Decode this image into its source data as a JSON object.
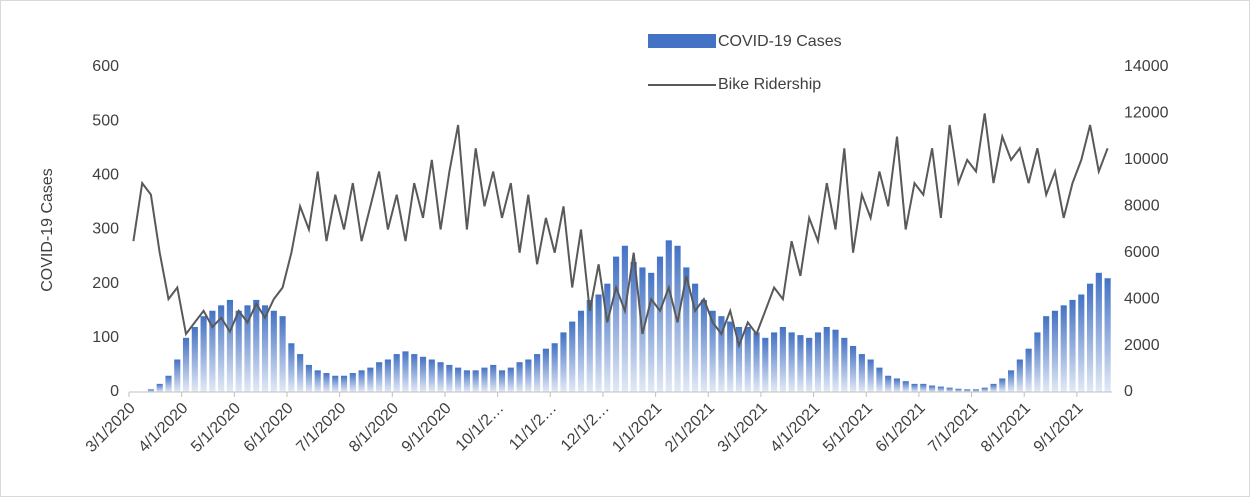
{
  "chart_data": {
    "type": "bar-line",
    "y_label": "COVID-19 Cases",
    "categories": [
      "3/1/2020",
      null,
      null,
      null,
      null,
      null,
      "4/1/2020",
      null,
      null,
      null,
      null,
      null,
      "5/1/2020",
      null,
      null,
      null,
      null,
      null,
      "6/1/2020",
      null,
      null,
      null,
      null,
      null,
      "7/1/2020",
      null,
      null,
      null,
      null,
      null,
      "8/1/2020",
      null,
      null,
      null,
      null,
      null,
      "9/1/2020",
      null,
      null,
      null,
      null,
      null,
      "10/1/2…",
      null,
      null,
      null,
      null,
      null,
      "11/1/2…",
      null,
      null,
      null,
      null,
      null,
      "12/1/2…",
      null,
      null,
      null,
      null,
      null,
      "1/1/2021",
      null,
      null,
      null,
      null,
      null,
      "2/1/2021",
      null,
      null,
      null,
      null,
      null,
      "3/1/2021",
      null,
      null,
      null,
      null,
      null,
      "4/1/2021",
      null,
      null,
      null,
      null,
      null,
      "5/1/2021",
      null,
      null,
      null,
      null,
      null,
      "6/1/2021",
      null,
      null,
      null,
      null,
      null,
      "7/1/2021",
      null,
      null,
      null,
      null,
      null,
      "8/1/2021",
      null,
      null,
      null,
      null,
      null,
      "9/1/2021",
      null,
      null,
      null
    ],
    "series": [
      {
        "name": "COVID-19 Cases",
        "color": "#4472c4",
        "values": [
          0,
          0,
          5,
          15,
          30,
          60,
          100,
          120,
          140,
          150,
          160,
          170,
          150,
          160,
          170,
          160,
          150,
          140,
          90,
          70,
          50,
          40,
          35,
          30,
          30,
          35,
          40,
          45,
          55,
          60,
          70,
          75,
          70,
          65,
          60,
          55,
          50,
          45,
          40,
          40,
          45,
          50,
          40,
          45,
          55,
          60,
          70,
          80,
          90,
          110,
          130,
          150,
          170,
          180,
          200,
          250,
          270,
          240,
          230,
          220,
          250,
          280,
          270,
          230,
          200,
          170,
          150,
          140,
          130,
          120,
          120,
          110,
          100,
          110,
          120,
          110,
          105,
          100,
          110,
          120,
          115,
          100,
          85,
          70,
          60,
          45,
          30,
          25,
          20,
          15,
          15,
          12,
          10,
          8,
          6,
          5,
          5,
          8,
          15,
          25,
          40,
          60,
          80,
          110,
          140,
          150,
          160,
          170,
          180,
          200,
          220,
          210
        ]
      },
      {
        "name": "Bike Ridership",
        "color": "#595959",
        "axis": "y2",
        "values": [
          6500,
          9000,
          8500,
          6000,
          4000,
          4500,
          2500,
          3000,
          3500,
          2800,
          3200,
          2600,
          3500,
          3000,
          3800,
          3200,
          4000,
          4500,
          6000,
          8000,
          7000,
          9500,
          6500,
          8500,
          7000,
          9000,
          6500,
          8000,
          9500,
          7000,
          8500,
          6500,
          9000,
          7500,
          10000,
          7000,
          9500,
          11500,
          7000,
          10500,
          8000,
          9500,
          7500,
          9000,
          6000,
          8500,
          5500,
          7500,
          6000,
          8000,
          4500,
          7000,
          3500,
          5500,
          3000,
          4500,
          3500,
          6000,
          2500,
          4000,
          3500,
          4500,
          3000,
          5000,
          3500,
          4000,
          3000,
          2500,
          3500,
          2000,
          3000,
          2500,
          3500,
          4500,
          4000,
          6500,
          5000,
          7500,
          6500,
          9000,
          7000,
          10500,
          6000,
          8500,
          7500,
          9500,
          8000,
          11000,
          7000,
          9000,
          8500,
          10500,
          7500,
          11500,
          9000,
          10000,
          9500,
          12000,
          9000,
          11000,
          10000,
          10500,
          9000,
          10500,
          8500,
          9500,
          7500,
          9000,
          10000,
          11500,
          9500,
          10500
        ]
      }
    ],
    "ylim": [
      0,
      600
    ],
    "yticks": [
      0,
      100,
      200,
      300,
      400,
      500,
      600
    ],
    "y2lim": [
      0,
      14000
    ],
    "y2ticks": [
      0,
      2000,
      4000,
      6000,
      8000,
      10000,
      12000,
      14000
    ],
    "grid": false
  }
}
